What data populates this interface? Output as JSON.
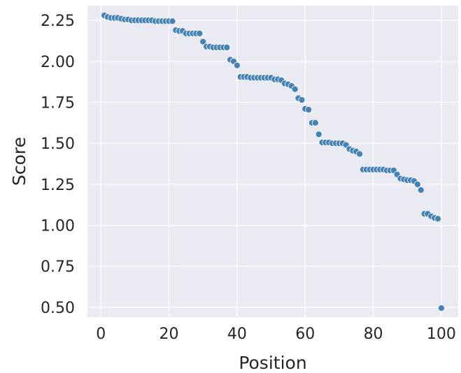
{
  "chart_data": {
    "type": "scatter",
    "title": "",
    "xlabel": "Position",
    "ylabel": "Score",
    "xlim": [
      -3.95,
      104.95
    ],
    "ylim": [
      0.44,
      2.34
    ],
    "grid": true,
    "legend": "none",
    "background_color": "#eaeaf2",
    "grid_color": "#ffffff",
    "point_color": "#4682b4",
    "x_ticks": [
      0,
      20,
      40,
      60,
      80,
      100
    ],
    "x_tick_labels": [
      "0",
      "20",
      "40",
      "60",
      "80",
      "100"
    ],
    "y_ticks": [
      0.5,
      0.75,
      1.0,
      1.25,
      1.5,
      1.75,
      2.0,
      2.25
    ],
    "y_tick_labels": [
      "0.50",
      "0.75",
      "1.00",
      "1.25",
      "1.50",
      "1.75",
      "2.00",
      "2.25"
    ],
    "series": [
      {
        "x": [
          1,
          2,
          3,
          4,
          5,
          6,
          7,
          8,
          9,
          10,
          11,
          12,
          13,
          14,
          15,
          16,
          17,
          18,
          19,
          20,
          21,
          22,
          23,
          24,
          25,
          26,
          27,
          28,
          29,
          30,
          31,
          32,
          33,
          34,
          35,
          36,
          37,
          38,
          39,
          40,
          41,
          42,
          43,
          44,
          45,
          46,
          47,
          48,
          49,
          50,
          51,
          52,
          53,
          54,
          55,
          56,
          57,
          58,
          59,
          60,
          61,
          62,
          63,
          64,
          65,
          66,
          67,
          68,
          69,
          70,
          71,
          72,
          73,
          74,
          75,
          76,
          77,
          78,
          79,
          80,
          81,
          82,
          83,
          84,
          85,
          86,
          87,
          88,
          89,
          90,
          91,
          92,
          93,
          94,
          95,
          96,
          97,
          98,
          99,
          100
        ],
        "y": [
          2.28,
          2.27,
          2.265,
          2.265,
          2.265,
          2.26,
          2.255,
          2.255,
          2.25,
          2.25,
          2.25,
          2.25,
          2.25,
          2.25,
          2.25,
          2.245,
          2.245,
          2.245,
          2.245,
          2.245,
          2.245,
          2.19,
          2.185,
          2.185,
          2.17,
          2.17,
          2.17,
          2.17,
          2.17,
          2.12,
          2.09,
          2.09,
          2.085,
          2.085,
          2.085,
          2.085,
          2.085,
          2.01,
          2.0,
          1.975,
          1.905,
          1.905,
          1.905,
          1.9,
          1.9,
          1.9,
          1.9,
          1.9,
          1.9,
          1.9,
          1.89,
          1.89,
          1.885,
          1.865,
          1.86,
          1.85,
          1.83,
          1.775,
          1.765,
          1.71,
          1.705,
          1.625,
          1.625,
          1.555,
          1.505,
          1.505,
          1.505,
          1.5,
          1.5,
          1.5,
          1.5,
          1.49,
          1.465,
          1.455,
          1.45,
          1.435,
          1.34,
          1.34,
          1.34,
          1.34,
          1.34,
          1.34,
          1.34,
          1.335,
          1.335,
          1.335,
          1.31,
          1.285,
          1.28,
          1.275,
          1.275,
          1.27,
          1.25,
          1.215,
          1.07,
          1.07,
          1.055,
          1.045,
          1.04,
          0.495
        ]
      }
    ]
  }
}
